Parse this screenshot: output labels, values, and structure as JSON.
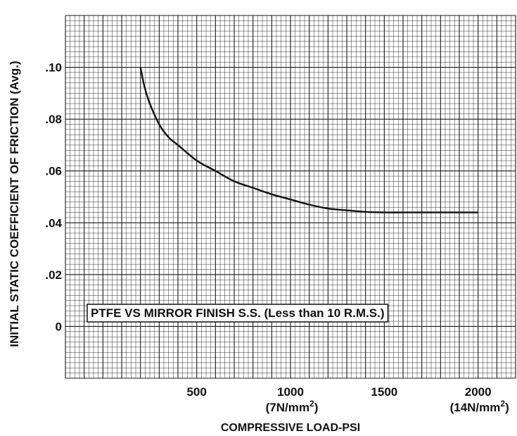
{
  "chart_data": {
    "type": "line",
    "ylabel": "INITIAL STATIC COEFFICIENT OF FRICTION (Avg.)",
    "xlabel": "COMPRESSIVE LOAD-PSI",
    "annotation": "PTFE VS MIRROR FINISH S.S. (Less than 10 R.M.S.)",
    "xlim": [
      -200,
      2200
    ],
    "ylim": [
      -0.02,
      0.12
    ],
    "grid": true,
    "x_ticks": [
      {
        "value": 500,
        "label": "500",
        "sub": "",
        "sup": ""
      },
      {
        "value": 1000,
        "label": "1000",
        "sub": "(7N/mm",
        "sup": "2"
      },
      {
        "value": 1500,
        "label": "1500",
        "sub": "",
        "sup": ""
      },
      {
        "value": 2000,
        "label": "2000",
        "sub": "(14N/mm",
        "sup": "2"
      }
    ],
    "y_ticks": [
      {
        "value": 0.1,
        "label": ".10"
      },
      {
        "value": 0.08,
        "label": ".08"
      },
      {
        "value": 0.06,
        "label": ".06"
      },
      {
        "value": 0.04,
        "label": ".04"
      },
      {
        "value": 0.02,
        "label": ".02"
      },
      {
        "value": 0.0,
        "label": "0"
      }
    ],
    "series": [
      {
        "x": [
          200,
          220,
          250,
          300,
          350,
          400,
          500,
          600,
          700,
          800,
          900,
          1000,
          1100,
          1200,
          1300,
          1400,
          1500,
          1600,
          1800,
          2000
        ],
        "y": [
          0.1,
          0.093,
          0.086,
          0.078,
          0.073,
          0.07,
          0.064,
          0.06,
          0.056,
          0.0535,
          0.051,
          0.049,
          0.047,
          0.0455,
          0.0448,
          0.0442,
          0.044,
          0.044,
          0.044,
          0.044
        ],
        "color": "#111111"
      }
    ]
  }
}
